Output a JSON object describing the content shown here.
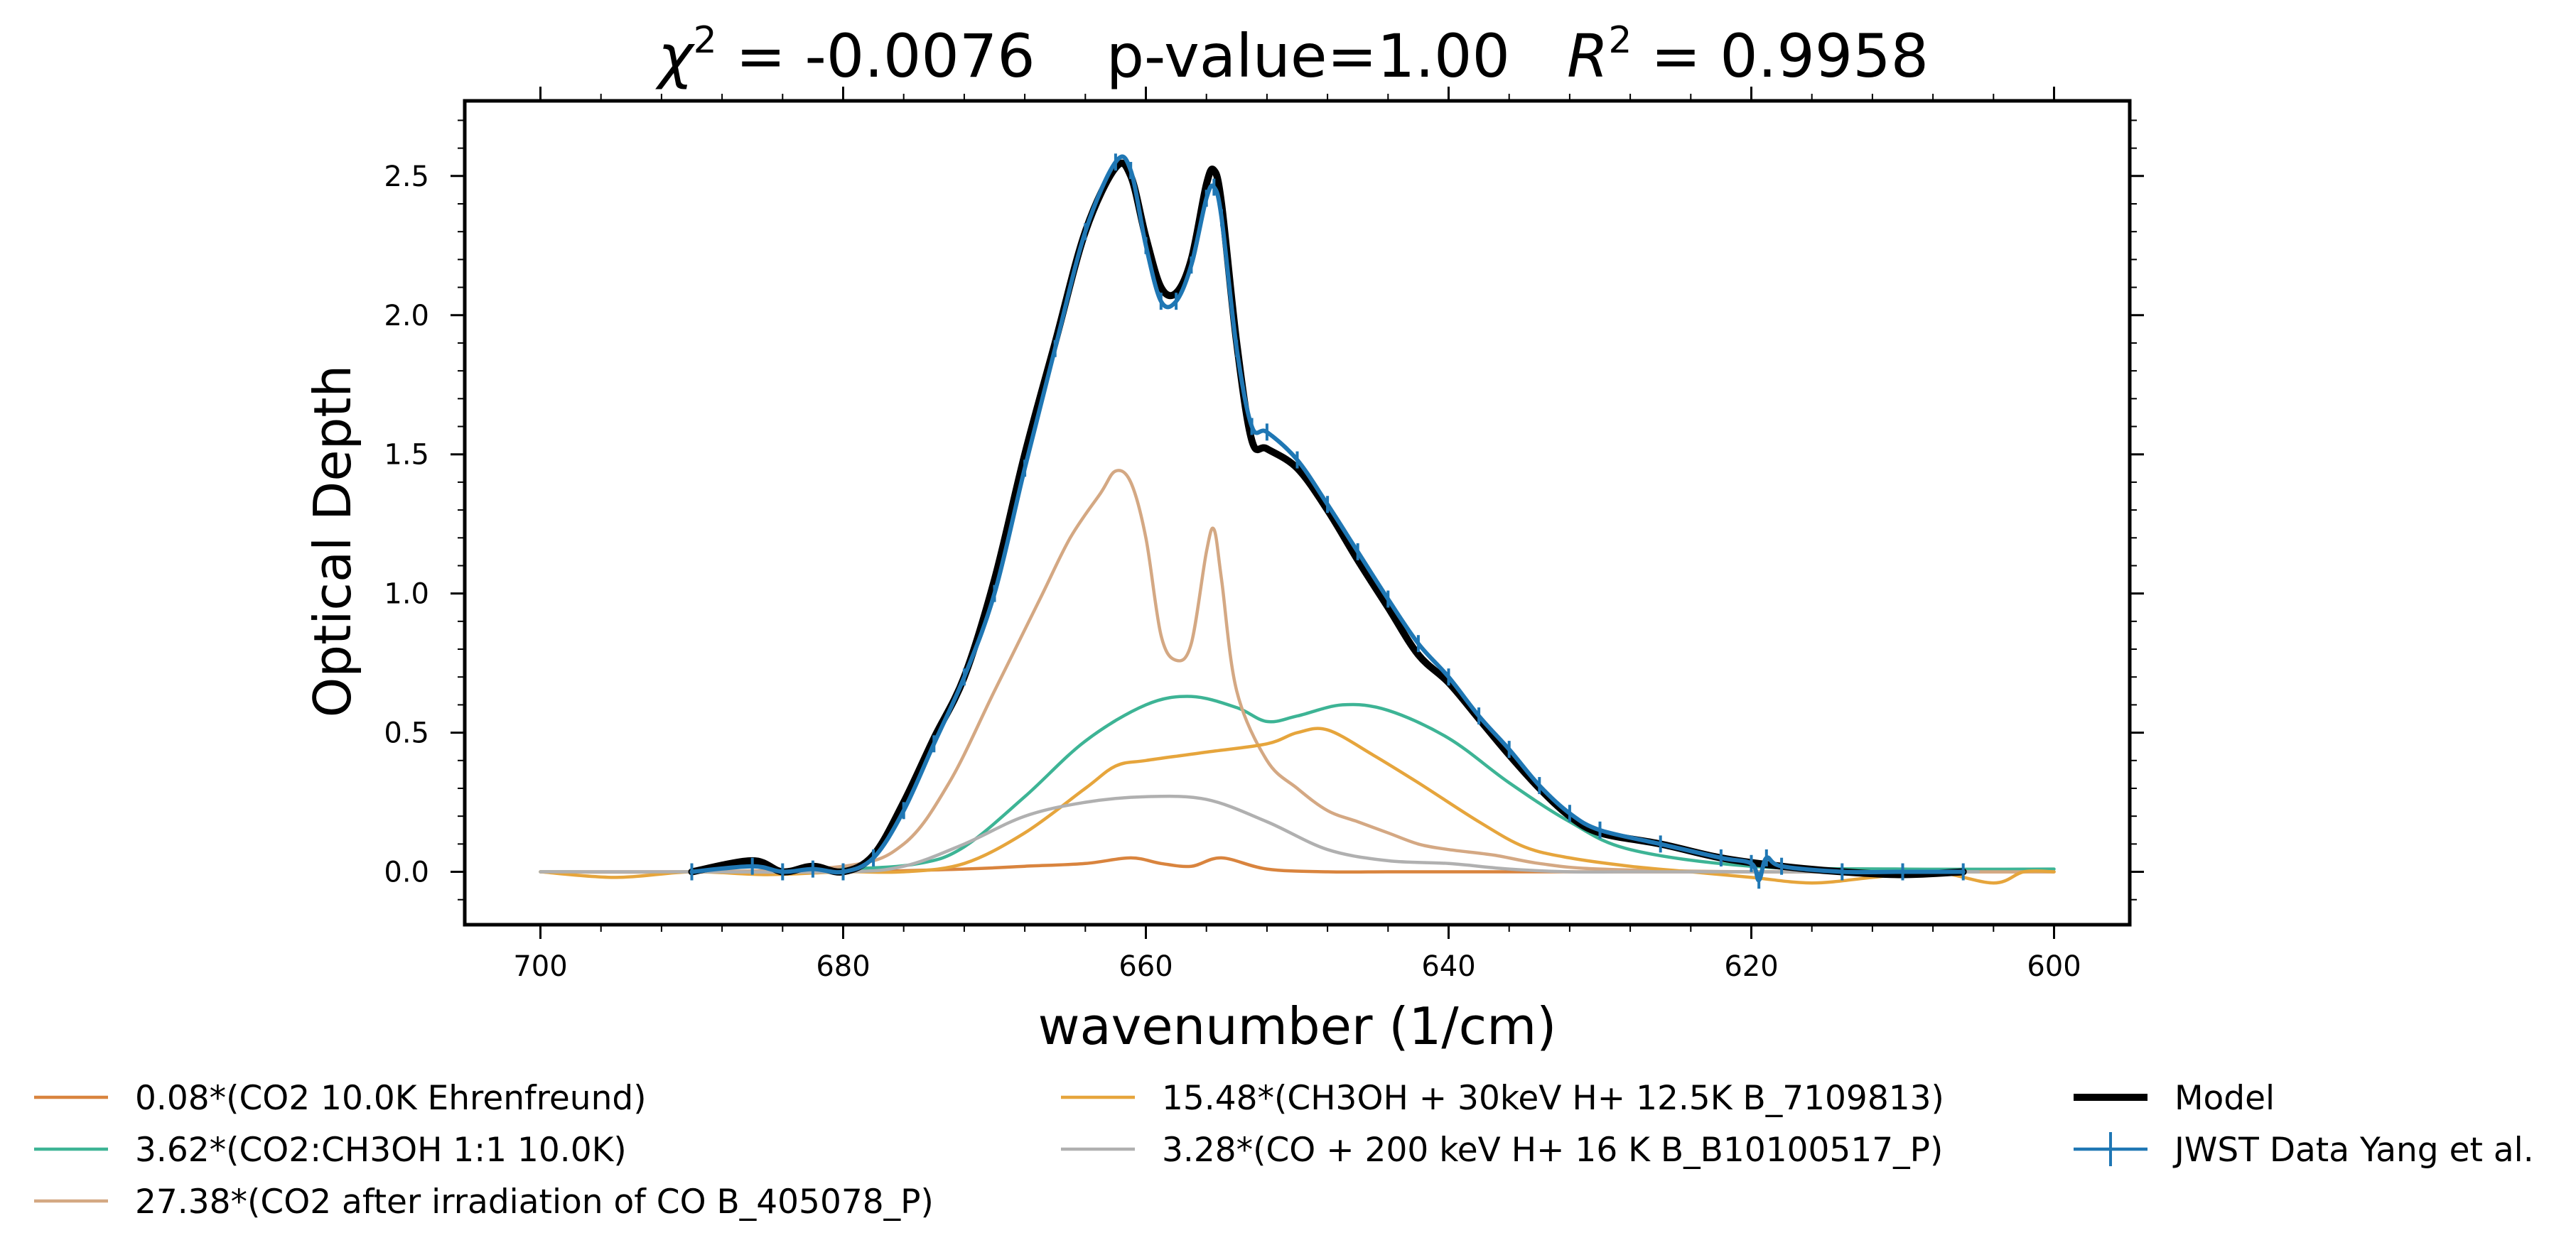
{
  "chart_data": {
    "type": "line",
    "title_parts": {
      "chi_symbol": "χ",
      "sup": "2",
      "chi_value": " = -0.0076",
      "pvalue": "p-value=1.00",
      "r_symbol": "R",
      "r_value": " = 0.9958"
    },
    "xlabel": "wavenumber (1/cm)",
    "ylabel": "Optical Depth",
    "xlim": [
      705,
      595
    ],
    "ylim": [
      2.77,
      -0.19
    ],
    "y_inverted": true,
    "x_inverted": true,
    "xticks": [
      700,
      680,
      660,
      640,
      620,
      600
    ],
    "xtick_labels": [
      "700",
      "680",
      "660",
      "640",
      "620",
      "600"
    ],
    "yticks": [
      0.0,
      0.5,
      1.0,
      1.5,
      2.0,
      2.5
    ],
    "ytick_labels": [
      "0.0",
      "0.5",
      "1.0",
      "1.5",
      "2.0",
      "2.5"
    ],
    "grid": false,
    "legend_placement": "bottom (below plot, 3 columns)",
    "series": [
      {
        "name": "0.08*(CO2 10.0K Ehrenfreund)",
        "color": "#d9843e",
        "x": [
          700,
          690,
          680,
          672,
          668,
          664,
          661,
          659,
          657,
          655,
          652,
          648,
          644,
          640,
          630,
          620,
          610,
          600
        ],
        "y": [
          0.0,
          0.0,
          0.0,
          0.01,
          0.02,
          0.03,
          0.05,
          0.03,
          0.02,
          0.05,
          0.01,
          0.0,
          0.0,
          0.0,
          0.0,
          0.0,
          0.0,
          0.0
        ]
      },
      {
        "name": "3.62*(CO2:CH3OH 1:1 10.0K)",
        "color": "#3db495",
        "x": [
          700,
          690,
          680,
          675,
          672,
          668,
          664,
          660,
          657,
          654,
          652,
          650,
          647,
          644,
          640,
          636,
          632,
          628,
          620,
          610,
          600
        ],
        "y": [
          0.0,
          0.0,
          0.01,
          0.03,
          0.09,
          0.27,
          0.47,
          0.6,
          0.63,
          0.59,
          0.54,
          0.56,
          0.6,
          0.58,
          0.48,
          0.32,
          0.18,
          0.08,
          0.02,
          0.01,
          0.01
        ]
      },
      {
        "name": "27.38*(CO2 after irradiation of CO B_405078_P)",
        "color": "#d4a883",
        "x": [
          700,
          690,
          680,
          676,
          673,
          670,
          667,
          665,
          663,
          662,
          661,
          660,
          659,
          658,
          657,
          656,
          655.5,
          655,
          654,
          652,
          650,
          648,
          646,
          644,
          642,
          640,
          637,
          634,
          630,
          620,
          610,
          600
        ],
        "y": [
          0.0,
          0.0,
          0.02,
          0.1,
          0.32,
          0.65,
          0.98,
          1.2,
          1.36,
          1.44,
          1.4,
          1.2,
          0.85,
          0.76,
          0.82,
          1.15,
          1.23,
          1.05,
          0.65,
          0.4,
          0.3,
          0.22,
          0.18,
          0.14,
          0.1,
          0.08,
          0.06,
          0.03,
          0.01,
          0.0,
          0.0,
          0.0
        ]
      },
      {
        "name": "15.48*(CH3OH + 30keV H+ 12.5K B_7109813)",
        "color": "#e6a53c",
        "x": [
          700,
          695,
          690,
          685,
          680,
          676,
          672,
          668,
          664,
          662,
          660,
          656,
          652,
          650,
          648,
          645,
          642,
          638,
          635,
          632,
          628,
          624,
          620,
          616,
          612,
          608,
          604,
          602,
          600
        ],
        "y": [
          0.0,
          -0.02,
          0.0,
          -0.01,
          0.0,
          0.0,
          0.03,
          0.14,
          0.3,
          0.38,
          0.4,
          0.43,
          0.46,
          0.5,
          0.51,
          0.42,
          0.32,
          0.18,
          0.09,
          0.05,
          0.02,
          0.0,
          -0.02,
          -0.04,
          -0.02,
          0.0,
          -0.04,
          0.0,
          0.0
        ]
      },
      {
        "name": "3.28*(CO + 200 keV H+ 16 K B_B10100517_P)",
        "color": "#b0b0b0",
        "x": [
          700,
          690,
          680,
          676,
          672,
          668,
          664,
          660,
          656,
          652,
          648,
          644,
          640,
          636,
          632,
          628,
          620,
          610,
          605
        ],
        "y": [
          0.0,
          0.0,
          0.0,
          0.02,
          0.1,
          0.2,
          0.25,
          0.27,
          0.26,
          0.18,
          0.08,
          0.04,
          0.03,
          0.01,
          0.0,
          0.0,
          0.0,
          0.0,
          0.0
        ]
      },
      {
        "name": "Model",
        "color": "#000000",
        "x": [
          690,
          686,
          684,
          682,
          680,
          678,
          676,
          674,
          672,
          670,
          668,
          666,
          664,
          662,
          661,
          660,
          659,
          658,
          657,
          656,
          655.5,
          655,
          654,
          653,
          652,
          650,
          648,
          646,
          644,
          642,
          640,
          638,
          636,
          634,
          632,
          630,
          626,
          622,
          618,
          614,
          610,
          606
        ],
        "y": [
          0.0,
          0.04,
          0.0,
          0.02,
          0.0,
          0.06,
          0.25,
          0.48,
          0.7,
          1.05,
          1.5,
          1.9,
          2.3,
          2.53,
          2.5,
          2.28,
          2.1,
          2.08,
          2.2,
          2.47,
          2.52,
          2.4,
          1.9,
          1.55,
          1.52,
          1.45,
          1.3,
          1.12,
          0.95,
          0.78,
          0.68,
          0.55,
          0.42,
          0.3,
          0.2,
          0.14,
          0.1,
          0.05,
          0.02,
          0.0,
          -0.01,
          0.0
        ]
      },
      {
        "name": "JWST Data Yang et al.",
        "color": "#1f77b4",
        "x": [
          690,
          686,
          684,
          682,
          680,
          678,
          676,
          674,
          672,
          670,
          668,
          666,
          664,
          662,
          661,
          660,
          659,
          658,
          657,
          656,
          655.5,
          655,
          654,
          653,
          652,
          650,
          648,
          646,
          644,
          642,
          640,
          638,
          636,
          634,
          632,
          630,
          626,
          622,
          620,
          619.5,
          619,
          618,
          614,
          610,
          606
        ],
        "y": [
          0.0,
          0.02,
          0.0,
          0.01,
          0.0,
          0.05,
          0.22,
          0.46,
          0.7,
          1.0,
          1.45,
          1.88,
          2.3,
          2.55,
          2.52,
          2.25,
          2.05,
          2.05,
          2.18,
          2.42,
          2.46,
          2.35,
          1.88,
          1.6,
          1.58,
          1.48,
          1.32,
          1.15,
          0.98,
          0.82,
          0.7,
          0.56,
          0.44,
          0.31,
          0.21,
          0.15,
          0.1,
          0.05,
          0.03,
          -0.03,
          0.05,
          0.02,
          0.0,
          0.0,
          0.0
        ]
      }
    ],
    "legend": [
      [
        "0.08*(CO2 10.0K Ehrenfreund)",
        "3.62*(CO2:CH3OH 1:1 10.0K)",
        "27.38*(CO2 after irradiation of CO B_405078_P)"
      ],
      [
        "15.48*(CH3OH + 30keV H+ 12.5K B_7109813)",
        "3.28*(CO + 200 keV H+ 16 K B_B10100517_P)"
      ],
      [
        "Model",
        "JWST Data Yang et al."
      ]
    ]
  }
}
